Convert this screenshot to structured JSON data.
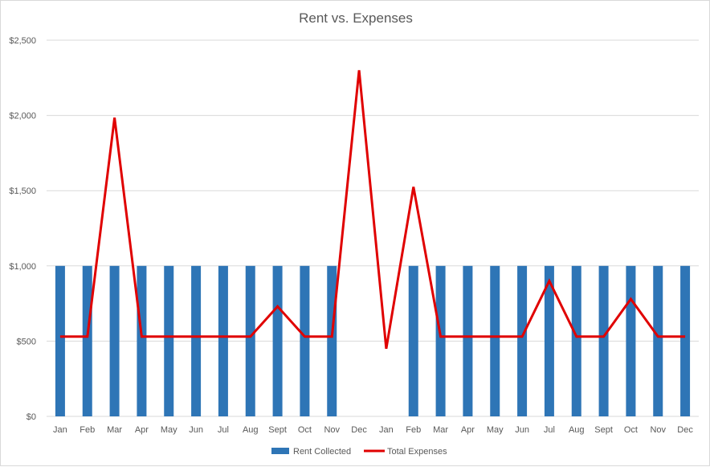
{
  "chart_data": {
    "type": "bar",
    "title": "Rent vs. Expenses",
    "xlabel": "",
    "ylabel": "",
    "ylim": [
      0,
      2500
    ],
    "y_ticks": [
      0,
      500,
      1000,
      1500,
      2000,
      2500
    ],
    "y_tick_labels": [
      "$0",
      "$500",
      "$1,000",
      "$1,500",
      "$2,000",
      "$2,500"
    ],
    "grid": true,
    "legend_position": "bottom",
    "categories": [
      "Jan",
      "Feb",
      "Mar",
      "Apr",
      "May",
      "Jun",
      "Jul",
      "Aug",
      "Sept",
      "Oct",
      "Nov",
      "Dec",
      "Jan",
      "Feb",
      "Mar",
      "Apr",
      "May",
      "Jun",
      "Jul",
      "Aug",
      "Sept",
      "Oct",
      "Nov",
      "Dec"
    ],
    "series": [
      {
        "name": "Rent Collected",
        "type": "bar",
        "color": "#2e75b6",
        "values": [
          1000,
          1000,
          1000,
          1000,
          1000,
          1000,
          1000,
          1000,
          1000,
          1000,
          1000,
          0,
          0,
          1000,
          1000,
          1000,
          1000,
          1000,
          1000,
          1000,
          1000,
          1000,
          1000,
          1000
        ]
      },
      {
        "name": "Total Expenses",
        "type": "line",
        "color": "#e00000",
        "values": [
          530,
          530,
          1985,
          530,
          530,
          530,
          530,
          530,
          730,
          530,
          530,
          2300,
          450,
          1525,
          530,
          530,
          530,
          530,
          900,
          530,
          530,
          780,
          530,
          530
        ]
      }
    ]
  }
}
